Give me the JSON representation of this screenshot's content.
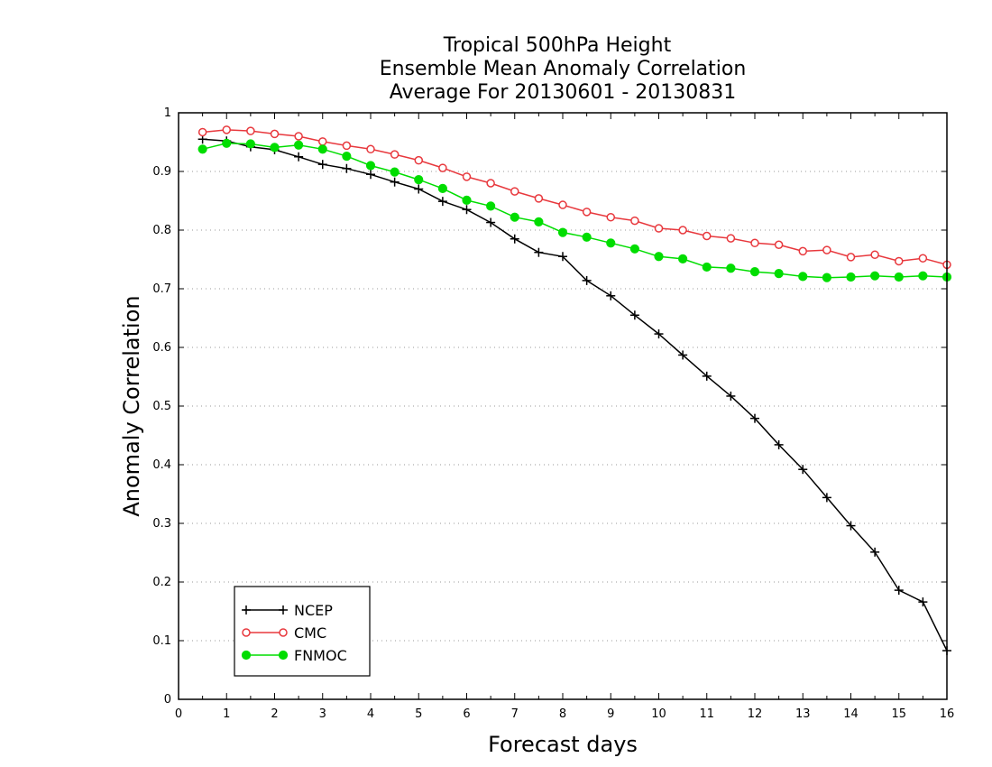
{
  "chart_data": {
    "type": "line",
    "title_lines": [
      "Tropical 500hPa Height",
      "Ensemble Mean Anomaly Correlation",
      "Average For 20130601 - 20130831"
    ],
    "xlabel": "Forecast days",
    "ylabel": "Anomaly Correlation",
    "xlim": [
      0,
      16
    ],
    "ylim": [
      0,
      1
    ],
    "x_ticks": [
      "0",
      "1",
      "2",
      "3",
      "4",
      "5",
      "6",
      "7",
      "8",
      "9",
      "10",
      "11",
      "12",
      "13",
      "14",
      "15",
      "16"
    ],
    "y_ticks": [
      "0",
      "0.1",
      "0.2",
      "0.3",
      "0.4",
      "0.5",
      "0.6",
      "0.7",
      "0.8",
      "0.9",
      "1"
    ],
    "grid": "horizontal dotted",
    "legend_position": "bottom-left",
    "x": [
      0.5,
      1,
      1.5,
      2,
      2.5,
      3,
      3.5,
      4,
      4.5,
      5,
      5.5,
      6,
      6.5,
      7,
      7.5,
      8,
      8.5,
      9,
      9.5,
      10,
      10.5,
      11,
      11.5,
      12,
      12.5,
      13,
      13.5,
      14,
      14.5,
      15,
      15.5,
      16
    ],
    "series": [
      {
        "name": "NCEP",
        "color": "#000000",
        "marker": "plus",
        "values": [
          0.955,
          0.952,
          0.942,
          0.937,
          0.925,
          0.912,
          0.905,
          0.895,
          0.882,
          0.87,
          0.849,
          0.835,
          0.813,
          0.785,
          0.762,
          0.755,
          0.714,
          0.688,
          0.655,
          0.623,
          0.587,
          0.551,
          0.517,
          0.479,
          0.434,
          0.392,
          0.344,
          0.296,
          0.251,
          0.186,
          0.166,
          0.083
        ]
      },
      {
        "name": "CMC",
        "color": "#e8383d",
        "marker": "open-circle",
        "values": [
          0.967,
          0.971,
          0.969,
          0.964,
          0.96,
          0.951,
          0.944,
          0.938,
          0.929,
          0.919,
          0.906,
          0.891,
          0.88,
          0.866,
          0.854,
          0.843,
          0.831,
          0.822,
          0.816,
          0.803,
          0.8,
          0.79,
          0.786,
          0.778,
          0.775,
          0.764,
          0.766,
          0.754,
          0.758,
          0.747,
          0.752,
          0.741
        ]
      },
      {
        "name": "FNMOC",
        "color": "#00dd00",
        "marker": "filled-circle",
        "values": [
          0.938,
          0.948,
          0.947,
          0.941,
          0.945,
          0.938,
          0.926,
          0.91,
          0.899,
          0.886,
          0.871,
          0.851,
          0.841,
          0.822,
          0.814,
          0.796,
          0.788,
          0.778,
          0.768,
          0.755,
          0.751,
          0.737,
          0.735,
          0.729,
          0.726,
          0.721,
          0.719,
          0.72,
          0.722,
          0.72,
          0.722,
          0.72
        ]
      }
    ]
  }
}
